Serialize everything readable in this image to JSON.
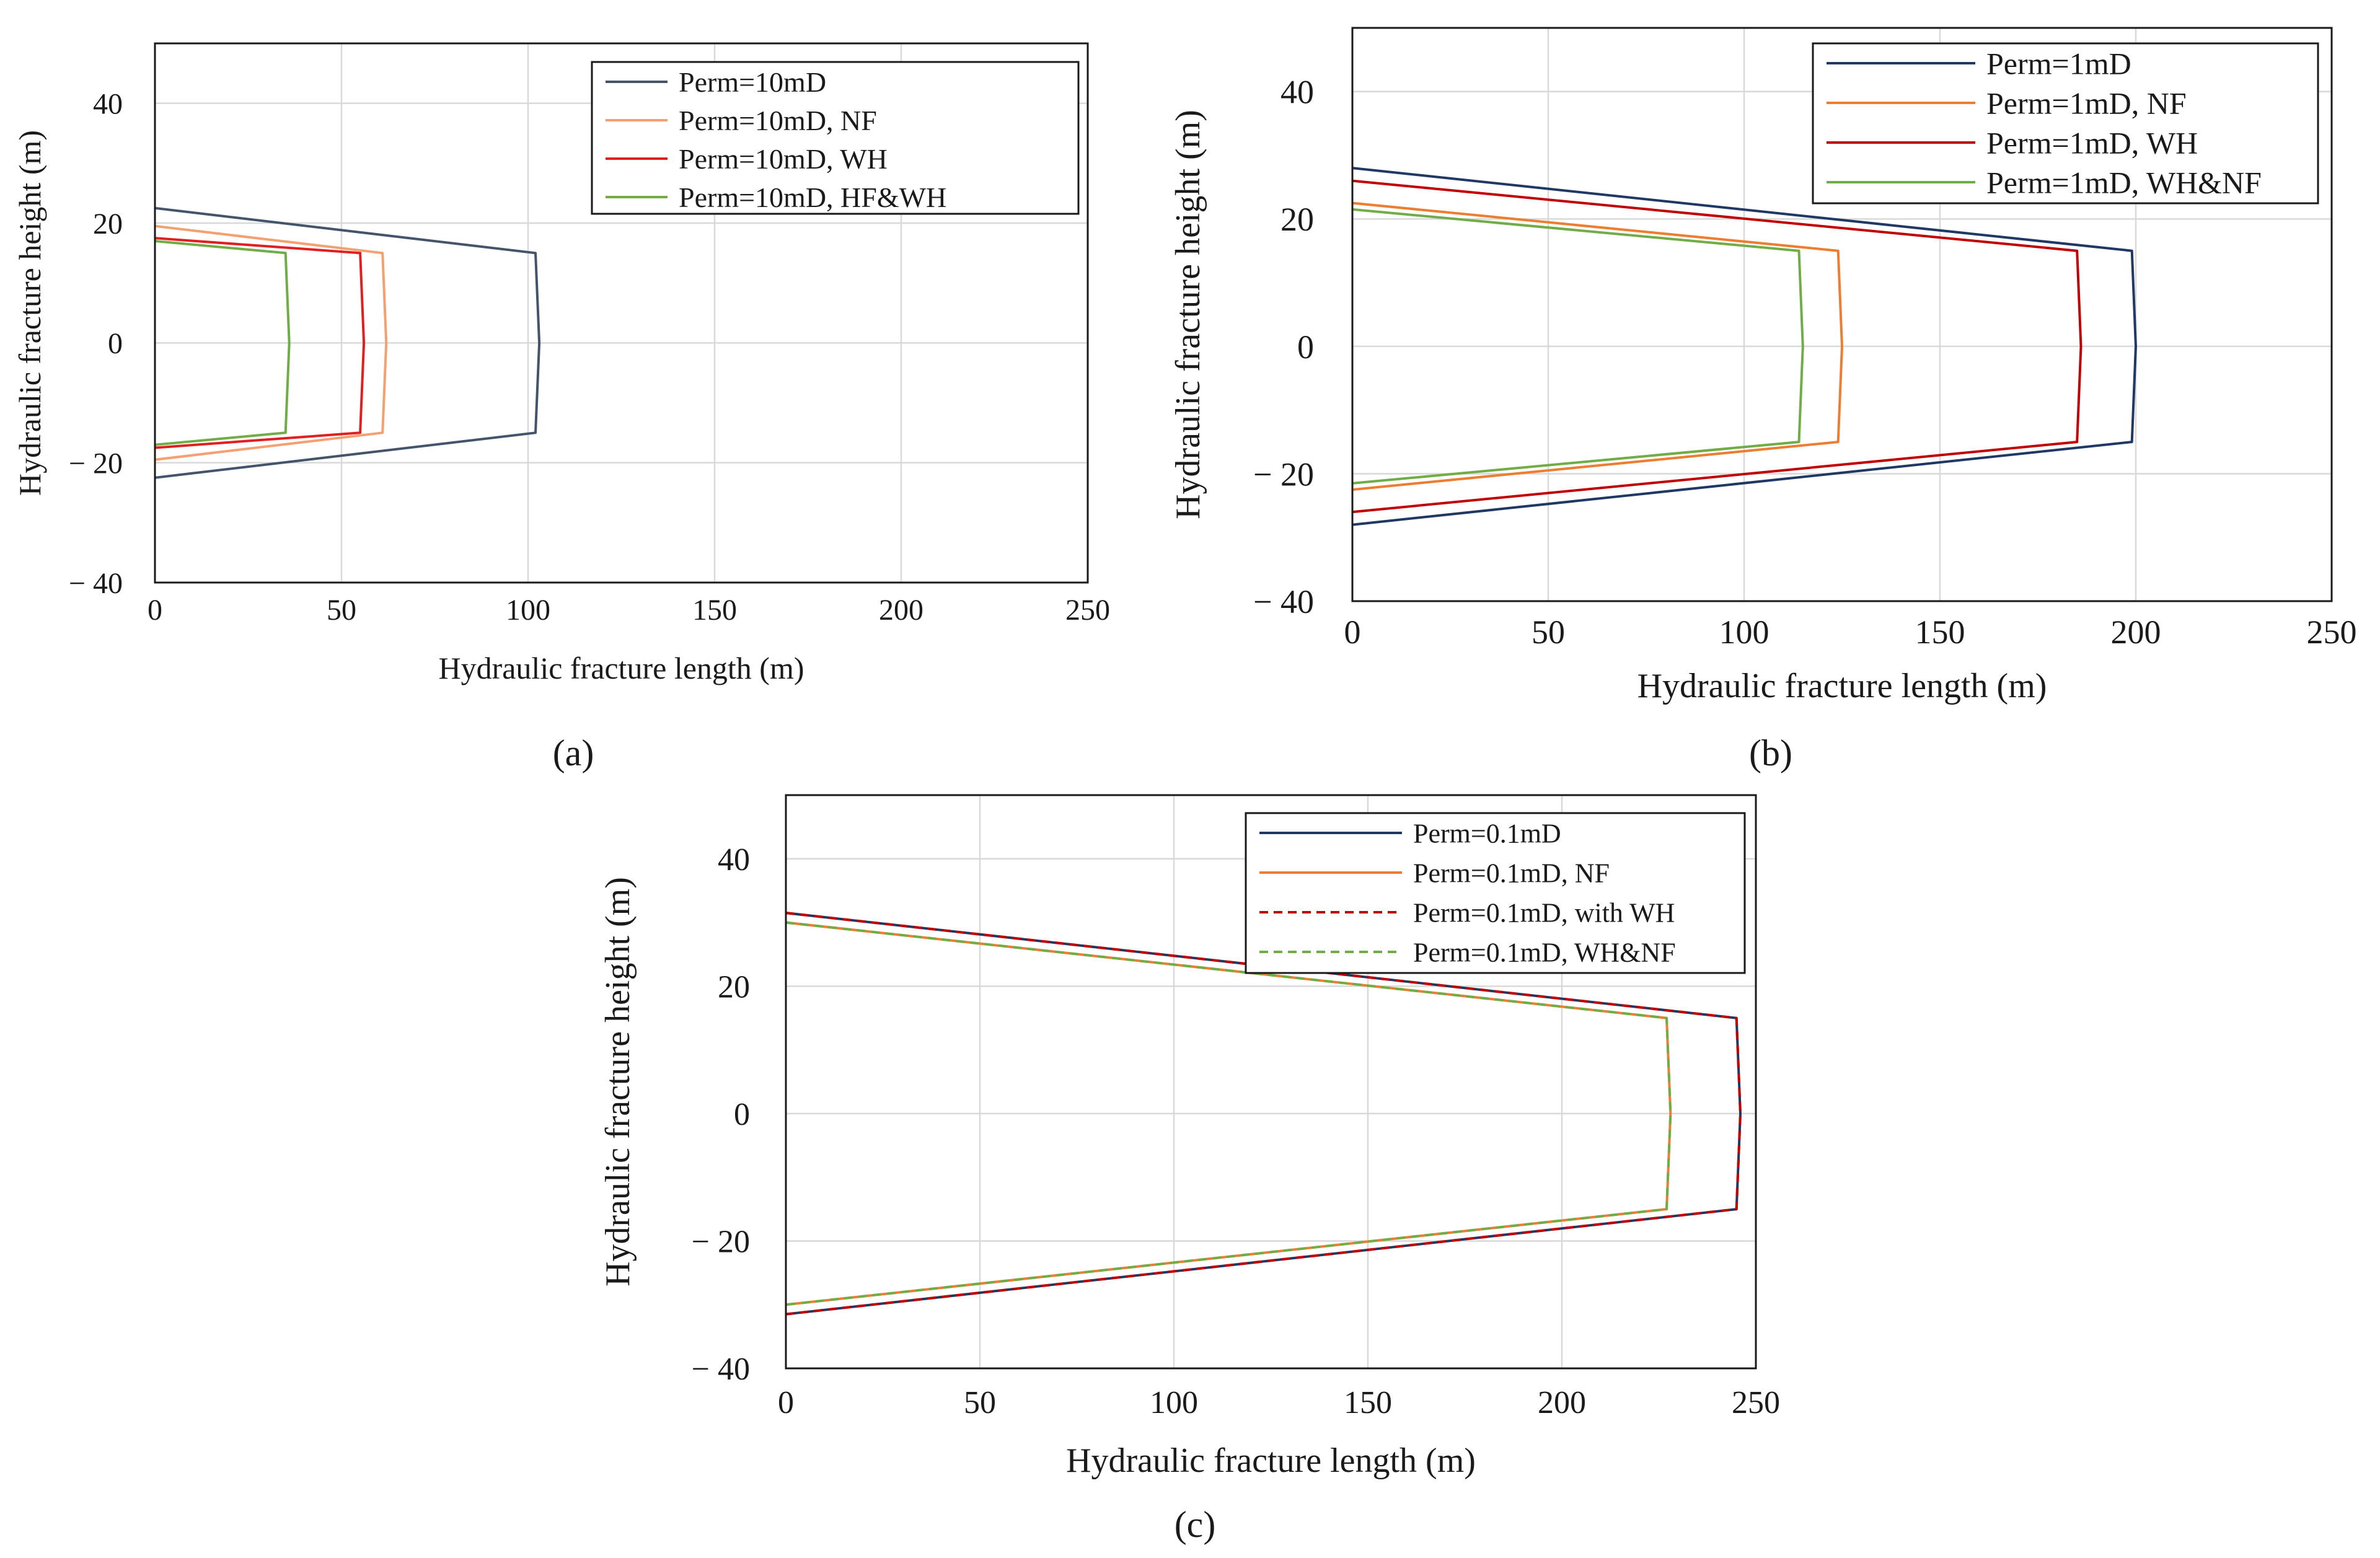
{
  "chart_data": [
    {
      "type": "line",
      "panel_label": "(a)",
      "xlabel": "Hydraulic fracture length (m)",
      "ylabel": "Hydraulic fracture height (m)",
      "xlim": [
        0,
        250
      ],
      "ylim": [
        -40,
        50
      ],
      "xticks": [
        0,
        50,
        100,
        150,
        200,
        250
      ],
      "yticks": [
        -40,
        -20,
        0,
        20,
        40
      ],
      "xtick_labels": [
        "0",
        "50",
        "100",
        "150",
        "200",
        "250"
      ],
      "ytick_labels": [
        "− 40",
        "− 20",
        "0",
        "20",
        "40"
      ],
      "grid": true,
      "legend_position": "top-right",
      "series": [
        {
          "name": "Perm=10mD",
          "color": "#44546a",
          "dash": "solid",
          "x": [
            0,
            102,
            103,
            102,
            0
          ],
          "y": [
            22.5,
            15,
            0,
            -15,
            -22.5
          ]
        },
        {
          "name": "Perm=10mD, NF",
          "color": "#f4a070",
          "dash": "solid",
          "x": [
            0,
            61,
            62,
            61,
            0
          ],
          "y": [
            19.5,
            15,
            0,
            -15,
            -19.5
          ]
        },
        {
          "name": "Perm=10mD, WH",
          "color": "#e02020",
          "dash": "solid",
          "x": [
            0,
            55,
            56,
            55,
            0
          ],
          "y": [
            17.5,
            15,
            0,
            -15,
            -17.5
          ]
        },
        {
          "name": "Perm=10mD, HF&WH",
          "color": "#70ad47",
          "dash": "solid",
          "x": [
            0,
            35,
            36,
            35,
            0
          ],
          "y": [
            17,
            15,
            0,
            -15,
            -17
          ]
        }
      ]
    },
    {
      "type": "line",
      "panel_label": "(b)",
      "xlabel": "Hydraulic fracture length (m)",
      "ylabel": "Hydraulic fracture height (m)",
      "xlim": [
        0,
        250
      ],
      "ylim": [
        -40,
        50
      ],
      "xticks": [
        0,
        50,
        100,
        150,
        200,
        250
      ],
      "yticks": [
        -40,
        -20,
        0,
        20,
        40
      ],
      "xtick_labels": [
        "0",
        "50",
        "100",
        "150",
        "200",
        "250"
      ],
      "ytick_labels": [
        "− 40",
        "− 20",
        "0",
        "20",
        "40"
      ],
      "grid": true,
      "legend_position": "top-right",
      "series": [
        {
          "name": "Perm=1mD",
          "color": "#1f3864",
          "dash": "solid",
          "x": [
            0,
            199,
            200,
            199,
            0
          ],
          "y": [
            28,
            15,
            0,
            -15,
            -28
          ]
        },
        {
          "name": "Perm=1mD, NF",
          "color": "#ed7d31",
          "dash": "solid",
          "x": [
            0,
            124,
            125,
            124,
            0
          ],
          "y": [
            22.5,
            15,
            0,
            -15,
            -22.5
          ]
        },
        {
          "name": "Perm=1mD, WH",
          "color": "#c00000",
          "dash": "solid",
          "x": [
            0,
            185,
            186,
            185,
            0
          ],
          "y": [
            26,
            15,
            0,
            -15,
            -26
          ]
        },
        {
          "name": "Perm=1mD, WH&NF",
          "color": "#70ad47",
          "dash": "solid",
          "x": [
            0,
            114,
            115,
            114,
            0
          ],
          "y": [
            21.5,
            15,
            0,
            -15,
            -21.5
          ]
        }
      ]
    },
    {
      "type": "line",
      "panel_label": "(c)",
      "xlabel": "Hydraulic fracture length (m)",
      "ylabel": "Hydraulic fracture height (m)",
      "xlim": [
        0,
        250
      ],
      "ylim": [
        -40,
        50
      ],
      "xticks": [
        0,
        50,
        100,
        150,
        200,
        250
      ],
      "yticks": [
        -40,
        -20,
        0,
        20,
        40
      ],
      "xtick_labels": [
        "0",
        "50",
        "100",
        "150",
        "200",
        "250"
      ],
      "ytick_labels": [
        "− 40",
        "− 20",
        "0",
        "20",
        "40"
      ],
      "grid": true,
      "legend_position": "top-right",
      "series": [
        {
          "name": "Perm=0.1mD",
          "color": "#1f3864",
          "dash": "solid",
          "x": [
            0,
            245,
            246,
            245,
            0
          ],
          "y": [
            31.5,
            15,
            0,
            -15,
            -31.5
          ]
        },
        {
          "name": "Perm=0.1mD, NF",
          "color": "#ed7d31",
          "dash": "solid",
          "x": [
            0,
            227,
            228,
            227,
            0
          ],
          "y": [
            30,
            15,
            0,
            -15,
            -30
          ]
        },
        {
          "name": "Perm=0.1mD, with WH",
          "color": "#c00000",
          "dash": "dashed",
          "x": [
            0,
            245,
            246,
            245,
            0
          ],
          "y": [
            31.5,
            15,
            0,
            -15,
            -31.5
          ]
        },
        {
          "name": "Perm=0.1mD, WH&NF",
          "color": "#70ad47",
          "dash": "dashed",
          "x": [
            0,
            227,
            228,
            227,
            0
          ],
          "y": [
            30,
            15,
            0,
            -15,
            -30
          ]
        }
      ]
    }
  ]
}
